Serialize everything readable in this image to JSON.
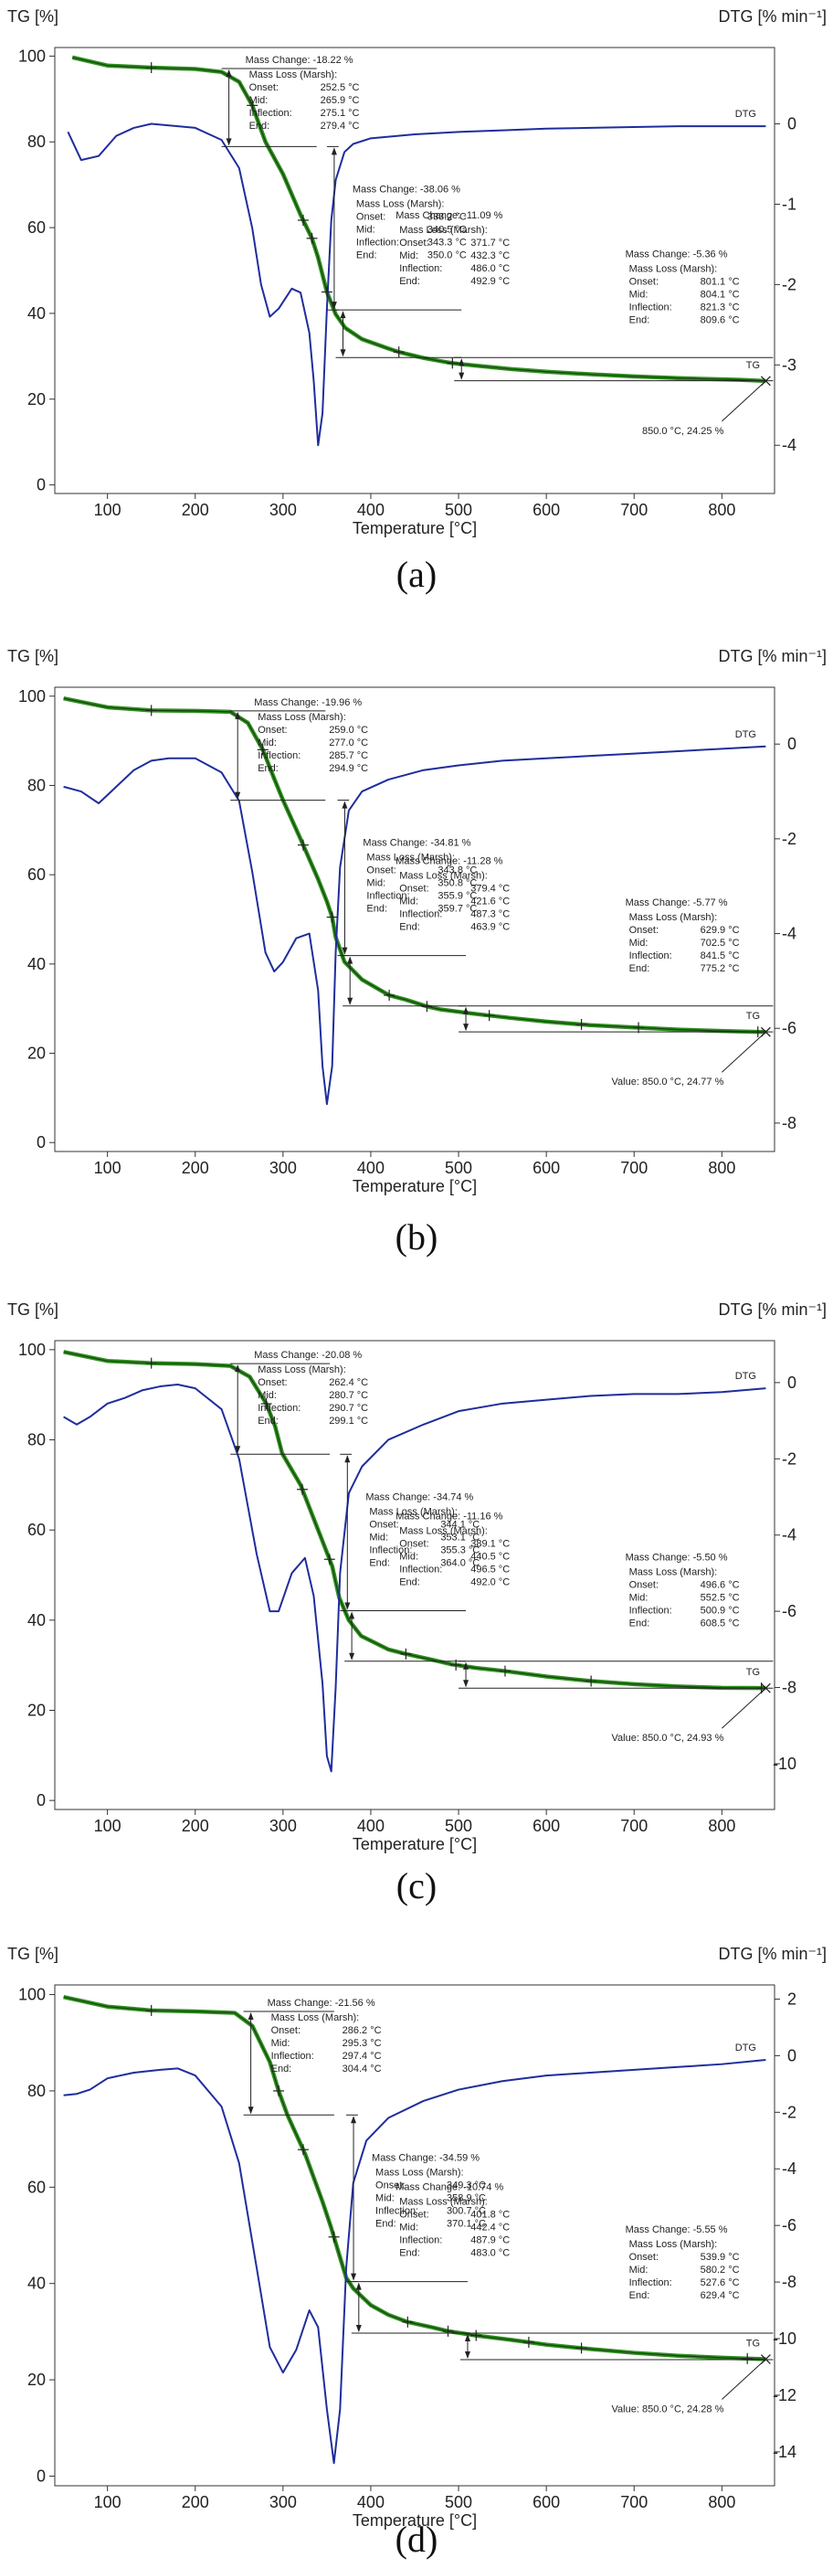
{
  "chart_data": [
    {
      "type": "line",
      "caption": "(a)",
      "left_axis_title": "TG [%]",
      "right_axis_title": "DTG [% min⁻¹]",
      "xlabel": "Temperature [°C]",
      "xlim": [
        40,
        860
      ],
      "ylim_left": [
        -2,
        102
      ],
      "ylim_right": [
        -4.6,
        0.95
      ],
      "x_ticks": [
        "100",
        "200",
        "300",
        "400",
        "500",
        "600",
        "700",
        "800"
      ],
      "left_ticks": [
        "0",
        "20",
        "40",
        "60",
        "80",
        "100"
      ],
      "right_ticks": [
        "0",
        "-1",
        "-2",
        "-3",
        "-4"
      ],
      "right_tick_values": [
        0,
        -1,
        -2,
        -3,
        -4
      ],
      "legend_dtg": "DTG",
      "legend_tg": "TG",
      "series": [
        {
          "name": "TG",
          "color": "#2f8f1f",
          "x": [
            60,
            100,
            150,
            200,
            230,
            250,
            265,
            280,
            300,
            320,
            333,
            340,
            350,
            360,
            371,
            390,
            420,
            432,
            460,
            487,
            493,
            520,
            560,
            600,
            650,
            700,
            750,
            801,
            821,
            850
          ],
          "y": [
            99.7,
            97.8,
            97.3,
            97.0,
            96.3,
            94.0,
            88.5,
            80.0,
            72.5,
            63.0,
            57.5,
            53.0,
            45.0,
            39.8,
            36.6,
            34.0,
            31.8,
            31.0,
            29.6,
            28.6,
            28.4,
            27.8,
            27.0,
            26.4,
            25.8,
            25.3,
            24.9,
            24.6,
            24.5,
            24.25
          ]
        },
        {
          "name": "DTG",
          "color": "#1f2d9c",
          "x": [
            55,
            70,
            90,
            110,
            130,
            150,
            170,
            200,
            230,
            250,
            265,
            275,
            285,
            295,
            310,
            320,
            330,
            335,
            340,
            345,
            350,
            355,
            360,
            370,
            380,
            400,
            450,
            500,
            550,
            600,
            650,
            700,
            750,
            800,
            850
          ],
          "y": [
            -0.1,
            -0.45,
            -0.4,
            -0.15,
            -0.05,
            0.0,
            -0.02,
            -0.05,
            -0.2,
            -0.55,
            -1.3,
            -2.0,
            -2.4,
            -2.3,
            -2.05,
            -2.1,
            -2.6,
            -3.2,
            -4.0,
            -3.6,
            -2.3,
            -1.2,
            -0.7,
            -0.35,
            -0.25,
            -0.18,
            -0.13,
            -0.1,
            -0.08,
            -0.06,
            -0.05,
            -0.04,
            -0.03,
            -0.03,
            -0.03
          ]
        }
      ],
      "tg_markers_x": [
        150,
        265,
        323,
        333,
        350,
        432,
        493
      ],
      "steps": [
        {
          "change": "Mass Change: -18.22 %",
          "onset": "252.5 °C",
          "mid": "265.9 °C",
          "inflection": "275.1 °C",
          "end": "279.4 °C",
          "x_from": 230,
          "x_to": 330,
          "y_top": 97.1,
          "y_bot": 78.9
        },
        {
          "change": "Mass Change: -38.06 %",
          "onset": "333.2 °C",
          "mid": "340.5 °C",
          "inflection": "343.3 °C",
          "end": "350.0 °C",
          "x_from": 350,
          "x_to": 355,
          "y_top": 78.9,
          "y_bot": 40.8
        },
        {
          "change": "Mass Change: -11.09 %",
          "onset": "371.7 °C",
          "mid": "432.3 °C",
          "inflection": "486.0 °C",
          "end": "492.9 °C",
          "x_from": 360,
          "x_to": 495,
          "y_top": 40.8,
          "y_bot": 29.7
        },
        {
          "change": "Mass Change: -5.36 %",
          "onset": "801.1 °C",
          "mid": "804.1 °C",
          "inflection": "821.3 °C",
          "end": "809.6 °C",
          "x_from": 495,
          "x_to": 850,
          "y_top": 29.7,
          "y_bot": 24.3
        }
      ],
      "final_value": "850.0 °C, 24.25 %"
    },
    {
      "type": "line",
      "caption": "(b)",
      "left_axis_title": "TG [%]",
      "right_axis_title": "DTG [% min⁻¹]",
      "xlabel": "Temperature [°C]",
      "xlim": [
        40,
        860
      ],
      "ylim_left": [
        -2,
        102
      ],
      "ylim_right": [
        -8.6,
        1.2
      ],
      "x_ticks": [
        "100",
        "200",
        "300",
        "400",
        "500",
        "600",
        "700",
        "800"
      ],
      "left_ticks": [
        "0",
        "20",
        "40",
        "60",
        "80",
        "100"
      ],
      "right_ticks": [
        "0",
        "-2",
        "-4",
        "-6",
        "-8"
      ],
      "right_tick_values": [
        0,
        -2,
        -4,
        -6,
        -8
      ],
      "legend_dtg": "DTG",
      "legend_tg": "TG",
      "series": [
        {
          "name": "TG",
          "color": "#2f8f1f",
          "x": [
            50,
            100,
            150,
            200,
            240,
            260,
            277,
            290,
            300,
            320,
            340,
            350,
            356,
            360,
            370,
            390,
            421,
            440,
            464,
            480,
            520,
            560,
            600,
            650,
            700,
            750,
            800,
            841,
            850
          ],
          "y": [
            99.5,
            97.5,
            96.8,
            96.7,
            96.5,
            94.0,
            88.0,
            81.5,
            76.7,
            68.0,
            59.0,
            54.0,
            50.5,
            46.0,
            40.5,
            36.5,
            33.0,
            32.0,
            30.5,
            29.8,
            28.8,
            27.9,
            27.1,
            26.3,
            25.8,
            25.3,
            25.0,
            24.8,
            24.77
          ]
        },
        {
          "name": "DTG",
          "color": "#1f2d9c",
          "x": [
            50,
            70,
            90,
            110,
            130,
            150,
            170,
            200,
            230,
            250,
            265,
            280,
            290,
            300,
            315,
            330,
            340,
            345,
            350,
            356,
            360,
            365,
            375,
            390,
            420,
            460,
            500,
            550,
            600,
            650,
            700,
            750,
            800,
            850
          ],
          "y": [
            -0.9,
            -1.0,
            -1.25,
            -0.9,
            -0.55,
            -0.35,
            -0.3,
            -0.3,
            -0.6,
            -1.2,
            -2.7,
            -4.4,
            -4.8,
            -4.6,
            -4.1,
            -4.0,
            -5.2,
            -6.8,
            -7.6,
            -6.8,
            -4.4,
            -2.6,
            -1.4,
            -1.0,
            -0.75,
            -0.55,
            -0.45,
            -0.35,
            -0.3,
            -0.25,
            -0.2,
            -0.15,
            -0.1,
            -0.05
          ]
        }
      ],
      "tg_markers_x": [
        150,
        277,
        323,
        356,
        421,
        464,
        535,
        640,
        705,
        841
      ],
      "steps": [
        {
          "change": "Mass Change: -19.96 %",
          "onset": "259.0 °C",
          "mid": "277.0 °C",
          "inflection": "285.7 °C",
          "end": "294.9 °C",
          "x_from": 240,
          "x_to": 340,
          "y_top": 96.7,
          "y_bot": 76.7
        },
        {
          "change": "Mass Change: -34.81 %",
          "onset": "343.8 °C",
          "mid": "350.8 °C",
          "inflection": "355.9 °C",
          "end": "359.7 °C",
          "x_from": 362,
          "x_to": 367,
          "y_top": 76.7,
          "y_bot": 41.9
        },
        {
          "change": "Mass Change: -11.28 %",
          "onset": "379.4 °C",
          "mid": "421.6 °C",
          "inflection": "487.3 °C",
          "end": "463.9 °C",
          "x_from": 368,
          "x_to": 500,
          "y_top": 41.9,
          "y_bot": 30.6
        },
        {
          "change": "Mass Change: -5.77 %",
          "onset": "629.9 °C",
          "mid": "702.5 °C",
          "inflection": "841.5 °C",
          "end": "775.2 °C",
          "x_from": 500,
          "x_to": 850,
          "y_top": 30.6,
          "y_bot": 24.8
        }
      ],
      "final_value": "Value: 850.0 °C, 24.77 %"
    },
    {
      "type": "line",
      "caption": "(c)",
      "left_axis_title": "TG [%]",
      "right_axis_title": "DTG [% min⁻¹]",
      "xlabel": "Temperature [°C]",
      "xlim": [
        40,
        860
      ],
      "ylim_left": [
        -2,
        102
      ],
      "ylim_right": [
        -11.2,
        1.1
      ],
      "x_ticks": [
        "100",
        "200",
        "300",
        "400",
        "500",
        "600",
        "700",
        "800"
      ],
      "left_ticks": [
        "0",
        "20",
        "40",
        "60",
        "80",
        "100"
      ],
      "right_ticks": [
        "0",
        "-2",
        "-4",
        "-6",
        "-8",
        "-10"
      ],
      "right_tick_values": [
        0,
        -2,
        -4,
        -6,
        -8,
        -10
      ],
      "legend_dtg": "DTG",
      "legend_tg": "TG",
      "series": [
        {
          "name": "TG",
          "color": "#2f8f1f",
          "x": [
            50,
            100,
            150,
            200,
            240,
            262,
            281,
            291,
            299,
            320,
            340,
            350,
            356,
            364,
            375,
            389,
            420,
            440,
            470,
            492,
            520,
            553,
            600,
            650,
            700,
            750,
            800,
            850
          ],
          "y": [
            99.5,
            97.5,
            97.0,
            96.8,
            96.4,
            94.0,
            88.0,
            83.0,
            77.0,
            70.0,
            60.0,
            55.0,
            52.0,
            45.0,
            40.0,
            36.5,
            33.5,
            32.5,
            31.2,
            30.2,
            29.4,
            28.7,
            27.5,
            26.5,
            25.8,
            25.3,
            25.0,
            24.93
          ]
        },
        {
          "name": "DTG",
          "color": "#1f2d9c",
          "x": [
            50,
            65,
            80,
            100,
            120,
            140,
            160,
            180,
            200,
            230,
            250,
            270,
            285,
            295,
            310,
            325,
            335,
            345,
            350,
            355,
            360,
            365,
            375,
            390,
            420,
            460,
            500,
            550,
            600,
            650,
            700,
            750,
            800,
            850
          ],
          "y": [
            -0.9,
            -1.1,
            -0.9,
            -0.55,
            -0.4,
            -0.2,
            -0.1,
            -0.05,
            -0.15,
            -0.7,
            -2.0,
            -4.5,
            -6.0,
            -6.0,
            -5.0,
            -4.6,
            -5.6,
            -7.9,
            -9.8,
            -10.2,
            -8.0,
            -5.0,
            -2.9,
            -2.2,
            -1.5,
            -1.1,
            -0.75,
            -0.55,
            -0.45,
            -0.35,
            -0.3,
            -0.3,
            -0.25,
            -0.15
          ]
        }
      ],
      "tg_markers_x": [
        150,
        281,
        322,
        353,
        440,
        497,
        553,
        651,
        845
      ],
      "steps": [
        {
          "change": "Mass Change: -20.08 %",
          "onset": "262.4 °C",
          "mid": "280.7 °C",
          "inflection": "290.7 °C",
          "end": "299.1 °C",
          "x_from": 240,
          "x_to": 345,
          "y_top": 96.9,
          "y_bot": 76.8
        },
        {
          "change": "Mass Change: -34.74 %",
          "onset": "344.1 °C",
          "mid": "353.1 °C",
          "inflection": "355.3 °C",
          "end": "364.0 °C",
          "x_from": 365,
          "x_to": 370,
          "y_top": 76.8,
          "y_bot": 42.1
        },
        {
          "change": "Mass Change: -11.16 %",
          "onset": "389.1 °C",
          "mid": "440.5 °C",
          "inflection": "496.5 °C",
          "end": "492.0 °C",
          "x_from": 370,
          "x_to": 500,
          "y_top": 42.1,
          "y_bot": 30.9
        },
        {
          "change": "Mass Change: -5.50 %",
          "onset": "496.6 °C",
          "mid": "552.5 °C",
          "inflection": "500.9 °C",
          "end": "608.5 °C",
          "x_from": 500,
          "x_to": 850,
          "y_top": 30.9,
          "y_bot": 24.9
        }
      ],
      "final_value": "Value: 850.0 °C, 24.93 %"
    },
    {
      "type": "line",
      "caption": "(d)",
      "left_axis_title": "TG [%]",
      "right_axis_title": "DTG [% min⁻¹]",
      "xlabel": "Temperature [°C]",
      "xlim": [
        40,
        860
      ],
      "ylim_left": [
        -2,
        102
      ],
      "ylim_right": [
        -15.2,
        2.5
      ],
      "x_ticks": [
        "100",
        "200",
        "300",
        "400",
        "500",
        "600",
        "700",
        "800"
      ],
      "left_ticks": [
        "0",
        "20",
        "40",
        "60",
        "80",
        "100"
      ],
      "right_ticks": [
        "2",
        "0",
        "-2",
        "-4",
        "-6",
        "-8",
        "-10",
        "-12",
        "-14"
      ],
      "right_tick_values": [
        2,
        0,
        -2,
        -4,
        -6,
        -8,
        -10,
        -12,
        -14
      ],
      "legend_dtg": "DTG",
      "legend_tg": "TG",
      "series": [
        {
          "name": "TG",
          "color": "#2f8f1f",
          "x": [
            50,
            100,
            150,
            200,
            245,
            265,
            285,
            295,
            305,
            325,
            345,
            355,
            364,
            372,
            380,
            400,
            420,
            442,
            470,
            488,
            520,
            560,
            600,
            650,
            700,
            750,
            800,
            850
          ],
          "y": [
            99.5,
            97.5,
            96.7,
            96.5,
            96.2,
            93.5,
            86.0,
            80.0,
            75.0,
            67.0,
            57.0,
            51.5,
            46.0,
            41.2,
            39.0,
            35.5,
            33.5,
            32.0,
            30.9,
            30.1,
            29.2,
            28.3,
            27.3,
            26.4,
            25.6,
            25.0,
            24.6,
            24.28
          ]
        },
        {
          "name": "DTG",
          "color": "#1f2d9c",
          "x": [
            50,
            65,
            80,
            100,
            130,
            160,
            180,
            200,
            230,
            250,
            270,
            285,
            300,
            315,
            330,
            340,
            350,
            358,
            365,
            372,
            380,
            395,
            420,
            460,
            500,
            550,
            600,
            650,
            700,
            750,
            800,
            850
          ],
          "y": [
            -1.4,
            -1.35,
            -1.2,
            -0.8,
            -0.6,
            -0.5,
            -0.45,
            -0.7,
            -1.8,
            -3.8,
            -7.5,
            -10.3,
            -11.2,
            -10.4,
            -9.0,
            -9.6,
            -12.5,
            -14.4,
            -12.5,
            -7.5,
            -4.5,
            -3.0,
            -2.2,
            -1.6,
            -1.2,
            -0.9,
            -0.7,
            -0.6,
            -0.5,
            -0.4,
            -0.3,
            -0.15
          ]
        }
      ],
      "tg_markers_x": [
        150,
        295,
        323,
        358,
        442,
        488,
        520,
        580,
        640,
        829
      ],
      "steps": [
        {
          "change": "Mass Change: -21.56 %",
          "onset": "286.2 °C",
          "mid": "295.3 °C",
          "inflection": "297.4 °C",
          "end": "304.4 °C",
          "x_from": 255,
          "x_to": 350,
          "y_top": 96.5,
          "y_bot": 75.0
        },
        {
          "change": "Mass Change: -34.59 %",
          "onset": "349.3 °C",
          "mid": "358.9 °C",
          "inflection": "300.7 °C",
          "end": "370.1 °C",
          "x_from": 372,
          "x_to": 377,
          "y_top": 75.0,
          "y_bot": 40.4
        },
        {
          "change": "Mass Change: -10.74 %",
          "onset": "401.8 °C",
          "mid": "442.4 °C",
          "inflection": "487.9 °C",
          "end": "483.0 °C",
          "x_from": 378,
          "x_to": 502,
          "y_top": 40.4,
          "y_bot": 29.7
        },
        {
          "change": "Mass Change: -5.55 %",
          "onset": "539.9 °C",
          "mid": "580.2 °C",
          "inflection": "527.6 °C",
          "end": "629.4 °C",
          "x_from": 502,
          "x_to": 850,
          "y_top": 29.7,
          "y_bot": 24.2
        }
      ],
      "final_value": "Value: 850.0 °C, 24.28 %"
    }
  ],
  "ann_labels": {
    "mass_loss": "Mass Loss (Marsh):",
    "onset": "Onset:",
    "mid": "Mid:",
    "inflection": "Inflection:",
    "end": "End:"
  }
}
